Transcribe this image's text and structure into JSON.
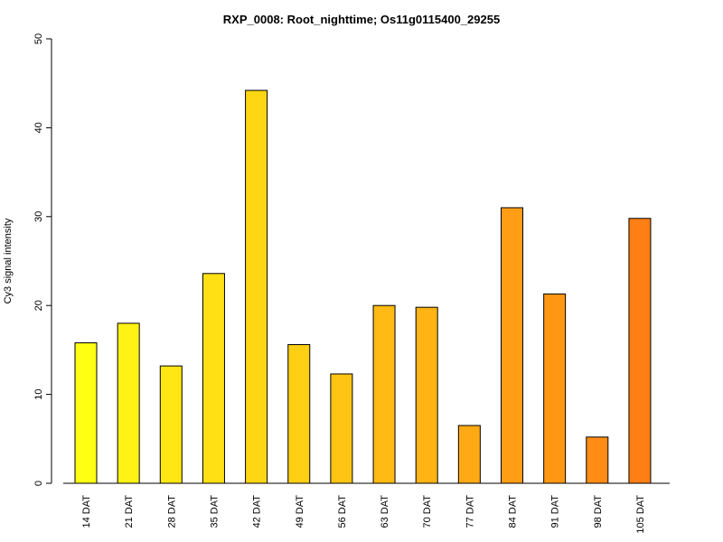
{
  "chart_data": {
    "type": "bar",
    "title": "RXP_0008: Root_nighttime; Os11g0115400_29255",
    "xlabel": "",
    "ylabel": "Cy3 signal intensity",
    "ylim": [
      0,
      50
    ],
    "yticks": [
      0,
      10,
      20,
      30,
      40,
      50
    ],
    "grid": false,
    "categories": [
      "14 DAT",
      "21 DAT",
      "28 DAT",
      "35 DAT",
      "42 DAT",
      "49 DAT",
      "56 DAT",
      "63 DAT",
      "70 DAT",
      "77 DAT",
      "84 DAT",
      "91 DAT",
      "98 DAT",
      "105 DAT"
    ],
    "values": [
      15.8,
      18.0,
      13.2,
      23.6,
      44.2,
      15.6,
      12.3,
      20.0,
      19.8,
      6.5,
      31.0,
      21.3,
      5.2,
      29.8
    ],
    "colors": [
      "#FFFF14",
      "#FFF214",
      "#FFE714",
      "#FFE014",
      "#FFD614",
      "#FFCF14",
      "#FFC414",
      "#FFBA14",
      "#FFB314",
      "#FFAA14",
      "#FF9E14",
      "#FF9614",
      "#FF8C14",
      "#FF7F14"
    ]
  }
}
